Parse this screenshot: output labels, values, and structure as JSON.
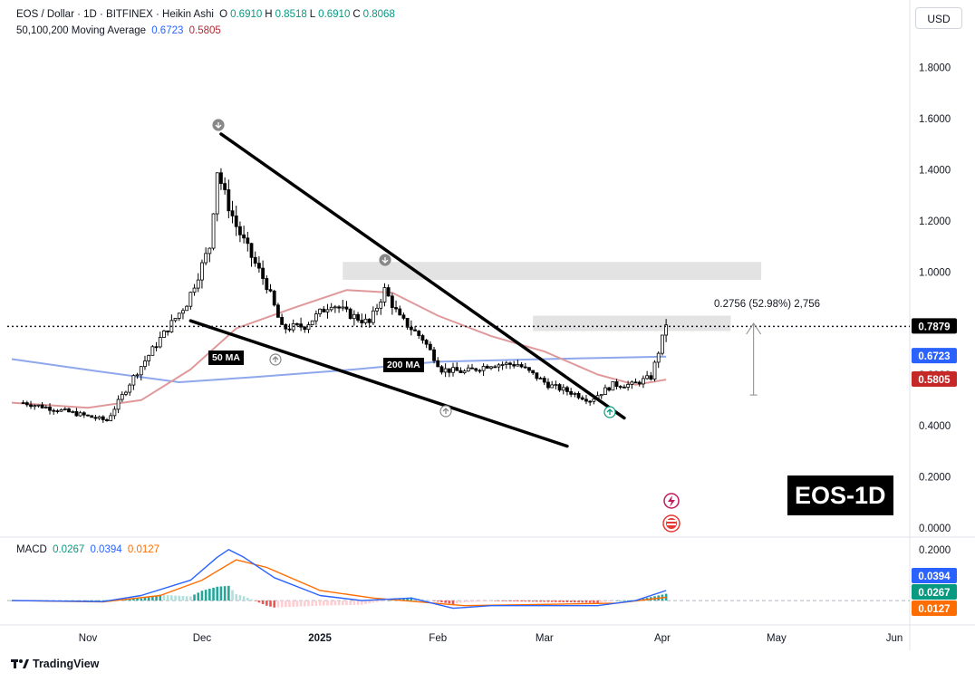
{
  "header": {
    "title": "EOS / Dollar · 1D · BITFINEX · Heikin Ashi",
    "ohlc": [
      {
        "key": "O",
        "value": "0.6910"
      },
      {
        "key": "H",
        "value": "0.8518"
      },
      {
        "key": "L",
        "value": "0.6910"
      },
      {
        "key": "C",
        "value": "0.8068"
      }
    ],
    "ma_label": "50,100,200 Moving Average",
    "ma_values": [
      "0.6723",
      "0.5805"
    ],
    "currency_button": "USD"
  },
  "macd_legend": {
    "label": "MACD",
    "values": [
      "0.0267",
      "0.0394",
      "0.0127"
    ]
  },
  "badges": {
    "ma50": "50 MA",
    "ma200": "200 MA",
    "ticker": "EOS-1D"
  },
  "footer": {
    "brand": "TradingView"
  },
  "colors": {
    "up": "#089981",
    "down": "#f23645",
    "ma50": "#e0999b",
    "ma200": "#8fa7ec",
    "macd": "#2962ff",
    "signal": "#ff6d00",
    "hist_up_strong": "#26a69a",
    "hist_up_weak": "#b2dfdb",
    "hist_down_strong": "#ef5350",
    "hist_down_weak": "#ffcdd2"
  },
  "chart_data": [
    {
      "type": "candlestick",
      "series_kind": "Heikin Ashi",
      "y_ticks": [
        "1.8000",
        "1.6000",
        "1.4000",
        "1.2000",
        "1.0000",
        "0.4000",
        "0.2000",
        "0.0000"
      ],
      "x_ticks": [
        "Nov",
        "Dec",
        "2025",
        "Feb",
        "Mar",
        "Apr",
        "May",
        "Jun"
      ],
      "ylim": [
        0,
        1.9
      ],
      "price_labels": [
        {
          "value": 0.7879,
          "text": "0.7879"
        },
        {
          "value": 0.6723,
          "text": "0.6723"
        },
        {
          "value": 0.5805,
          "text": "0.5805"
        }
      ],
      "anchors": [
        {
          "date": "2024-10-15",
          "value": 0.49
        },
        {
          "date": "2024-10-28",
          "value": 0.45
        },
        {
          "date": "2024-11-06",
          "value": 0.42
        },
        {
          "date": "2024-11-13",
          "value": 0.59
        },
        {
          "date": "2024-11-20",
          "value": 0.74
        },
        {
          "date": "2024-11-27",
          "value": 0.88
        },
        {
          "date": "2024-12-03",
          "value": 1.1
        },
        {
          "date": "2024-12-05",
          "value": 1.4
        },
        {
          "date": "2024-12-07",
          "value": 1.3
        },
        {
          "date": "2024-12-10",
          "value": 1.18
        },
        {
          "date": "2024-12-14",
          "value": 1.06
        },
        {
          "date": "2024-12-18",
          "value": 0.95
        },
        {
          "date": "2024-12-22",
          "value": 0.78
        },
        {
          "date": "2024-12-28",
          "value": 0.79
        },
        {
          "date": "2025-01-04",
          "value": 0.88
        },
        {
          "date": "2025-01-08",
          "value": 0.84
        },
        {
          "date": "2025-01-14",
          "value": 0.8
        },
        {
          "date": "2025-01-18",
          "value": 0.93
        },
        {
          "date": "2025-01-22",
          "value": 0.82
        },
        {
          "date": "2025-01-28",
          "value": 0.74
        },
        {
          "date": "2025-02-02",
          "value": 0.62
        },
        {
          "date": "2025-02-08",
          "value": 0.61
        },
        {
          "date": "2025-02-15",
          "value": 0.64
        },
        {
          "date": "2025-02-22",
          "value": 0.64
        },
        {
          "date": "2025-03-02",
          "value": 0.56
        },
        {
          "date": "2025-03-08",
          "value": 0.53
        },
        {
          "date": "2025-03-13",
          "value": 0.5
        },
        {
          "date": "2025-03-19",
          "value": 0.56
        },
        {
          "date": "2025-03-24",
          "value": 0.56
        },
        {
          "date": "2025-03-29",
          "value": 0.59
        },
        {
          "date": "2025-04-01",
          "value": 0.74
        },
        {
          "date": "2025-04-02",
          "value": 0.8
        }
      ],
      "ma50": [
        {
          "date": "2024-10-12",
          "value": 0.49
        },
        {
          "date": "2024-11-01",
          "value": 0.47
        },
        {
          "date": "2024-11-15",
          "value": 0.5
        },
        {
          "date": "2024-11-28",
          "value": 0.62
        },
        {
          "date": "2024-12-10",
          "value": 0.78
        },
        {
          "date": "2024-12-25",
          "value": 0.86
        },
        {
          "date": "2025-01-08",
          "value": 0.93
        },
        {
          "date": "2025-01-20",
          "value": 0.92
        },
        {
          "date": "2025-02-01",
          "value": 0.83
        },
        {
          "date": "2025-02-15",
          "value": 0.75
        },
        {
          "date": "2025-03-01",
          "value": 0.69
        },
        {
          "date": "2025-03-15",
          "value": 0.6
        },
        {
          "date": "2025-03-25",
          "value": 0.56
        },
        {
          "date": "2025-04-02",
          "value": 0.58
        }
      ],
      "ma200": [
        {
          "date": "2024-10-12",
          "value": 0.66
        },
        {
          "date": "2024-11-05",
          "value": 0.61
        },
        {
          "date": "2024-11-25",
          "value": 0.57
        },
        {
          "date": "2024-12-15",
          "value": 0.59
        },
        {
          "date": "2025-01-10",
          "value": 0.62
        },
        {
          "date": "2025-02-01",
          "value": 0.65
        },
        {
          "date": "2025-03-01",
          "value": 0.66
        },
        {
          "date": "2025-04-02",
          "value": 0.67
        }
      ],
      "trendlines": [
        {
          "from": {
            "date": "2024-12-06",
            "value": 1.54
          },
          "to": {
            "date": "2025-03-22",
            "value": 0.43
          }
        },
        {
          "from": {
            "date": "2024-11-28",
            "value": 0.81
          },
          "to": {
            "date": "2025-03-07",
            "value": 0.32
          }
        }
      ],
      "zones": [
        {
          "from": {
            "date": "2025-01-07",
            "value": 1.04
          },
          "to": {
            "date": "2025-04-27",
            "value": 0.97
          }
        },
        {
          "from": {
            "date": "2025-02-26",
            "value": 0.83
          },
          "to": {
            "date": "2025-04-19",
            "value": 0.77
          }
        }
      ],
      "measure": {
        "date": "2025-04-25",
        "from": 0.52,
        "to": 0.8,
        "label": "0.2756 (52.98%) 2,756"
      }
    },
    {
      "type": "macd",
      "y_ticks": [
        "0.2000"
      ],
      "ylim": [
        -0.06,
        0.21
      ],
      "price_labels": [
        {
          "value": 0.0394,
          "text": "0.0394"
        },
        {
          "value": 0.0267,
          "text": "0.0267"
        },
        {
          "value": 0.0127,
          "text": "0.0127"
        }
      ],
      "macd": [
        {
          "date": "2024-10-12",
          "value": 0.0
        },
        {
          "date": "2024-11-05",
          "value": -0.004
        },
        {
          "date": "2024-11-15",
          "value": 0.02
        },
        {
          "date": "2024-11-28",
          "value": 0.08
        },
        {
          "date": "2024-12-05",
          "value": 0.17
        },
        {
          "date": "2024-12-08",
          "value": 0.2
        },
        {
          "date": "2024-12-12",
          "value": 0.17
        },
        {
          "date": "2024-12-20",
          "value": 0.09
        },
        {
          "date": "2025-01-01",
          "value": 0.02
        },
        {
          "date": "2025-01-12",
          "value": 0.0
        },
        {
          "date": "2025-01-25",
          "value": 0.01
        },
        {
          "date": "2025-02-05",
          "value": -0.03
        },
        {
          "date": "2025-02-15",
          "value": -0.02
        },
        {
          "date": "2025-03-01",
          "value": -0.02
        },
        {
          "date": "2025-03-15",
          "value": -0.02
        },
        {
          "date": "2025-03-25",
          "value": 0.0
        },
        {
          "date": "2025-04-02",
          "value": 0.0394
        }
      ],
      "signal": [
        {
          "date": "2024-10-12",
          "value": 0.0
        },
        {
          "date": "2024-11-05",
          "value": -0.005
        },
        {
          "date": "2024-11-20",
          "value": 0.02
        },
        {
          "date": "2024-12-01",
          "value": 0.08
        },
        {
          "date": "2024-12-10",
          "value": 0.16
        },
        {
          "date": "2024-12-18",
          "value": 0.13
        },
        {
          "date": "2025-01-01",
          "value": 0.04
        },
        {
          "date": "2025-01-15",
          "value": 0.01
        },
        {
          "date": "2025-02-08",
          "value": -0.02
        },
        {
          "date": "2025-03-01",
          "value": -0.015
        },
        {
          "date": "2025-03-20",
          "value": -0.01
        },
        {
          "date": "2025-04-02",
          "value": 0.0127
        }
      ]
    }
  ]
}
